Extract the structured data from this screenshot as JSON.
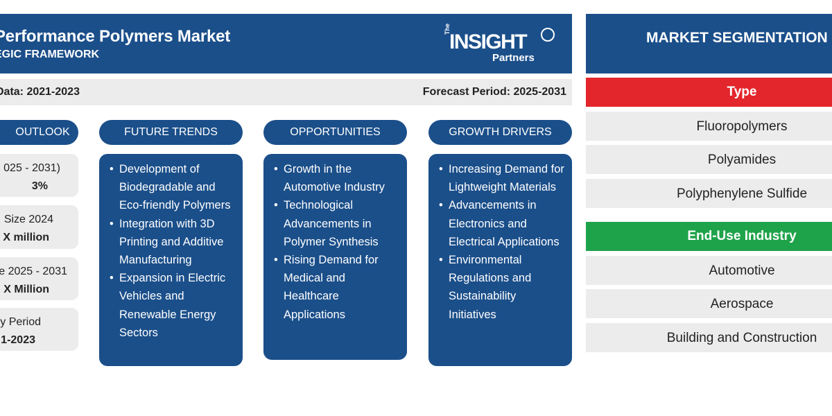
{
  "header": {
    "title": "Performance Polymers Market",
    "subtitle": "EGIC FRAMEWORK",
    "logo_the": "The",
    "logo_insight": "INSIGHT",
    "logo_partners": "Partners"
  },
  "periods": {
    "historic": "Data: 2021-2023",
    "forecast": "Forecast Period: 2025-2031"
  },
  "outlook": {
    "label": "OUTLOOK",
    "stats": [
      {
        "line1": "025 - 2031)",
        "line2": "3%"
      },
      {
        "line1": "Size 2024",
        "line2": "X million"
      },
      {
        "line1": "e 2025 - 2031",
        "line2": "X Million"
      },
      {
        "line1": "y Period",
        "line2": "1-2023"
      }
    ]
  },
  "columns": [
    {
      "label": "FUTURE TRENDS",
      "items": [
        "Development of Biodegradable and Eco-friendly Polymers",
        "Integration with 3D Printing and Additive Manufacturing",
        "Expansion in Electric Vehicles and Renewable Energy Sectors"
      ]
    },
    {
      "label": "OPPORTUNITIES",
      "items": [
        "Growth in the Automotive Industry",
        "Technological Advancements in Polymer Synthesis",
        "Rising Demand for Medical and Healthcare Applications"
      ]
    },
    {
      "label": "GROWTH DRIVERS",
      "items": [
        "Increasing Demand for Lightweight Materials",
        "Advancements in Electronics and Electrical Applications",
        "Environmental Regulations and Sustainability Initiatives"
      ]
    }
  ],
  "segmentation": {
    "title": "MARKET SEGMENTATION",
    "categories": [
      {
        "name": "Type",
        "color": "#e3262c",
        "items": [
          "Fluoropolymers",
          "Polyamides",
          "Polyphenylene Sulfide"
        ]
      },
      {
        "name": "End-Use Industry",
        "color": "#1fa34a",
        "items": [
          "Automotive",
          "Aerospace",
          "Building and Construction"
        ]
      }
    ]
  },
  "colors": {
    "primary": "#1b4f8a",
    "panel": "#ececec"
  }
}
